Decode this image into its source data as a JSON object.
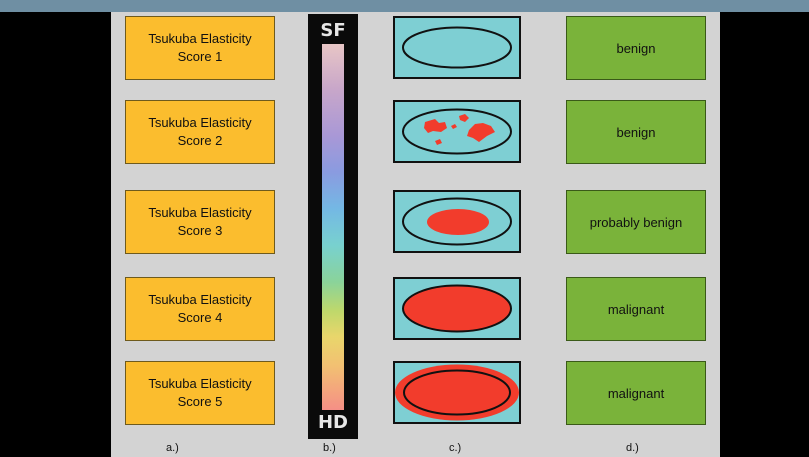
{
  "scores": [
    {
      "line1": "Tsukuba Elasticity",
      "line2": "Score 1"
    },
    {
      "line1": "Tsukuba Elasticity",
      "line2": "Score 2"
    },
    {
      "line1": "Tsukuba Elasticity",
      "line2": "Score 3"
    },
    {
      "line1": "Tsukuba Elasticity",
      "line2": "Score 4"
    },
    {
      "line1": "Tsukuba Elasticity",
      "line2": "Score 5"
    }
  ],
  "colorbar": {
    "top_label": "SF",
    "bottom_label": "HD"
  },
  "results": [
    "benign",
    "benign",
    "probably benign",
    "malignant",
    "malignant"
  ],
  "column_labels": [
    "a.)",
    "b.)",
    "c.)",
    "d.)"
  ],
  "colors": {
    "score_fill": "#fbbd2e",
    "result_fill": "#7ab33a",
    "diagram_fill": "#7ecfd3",
    "stiff_region": "#f23c2c",
    "panel": "#d3d3d3",
    "top_bar": "#6f8fa3"
  }
}
